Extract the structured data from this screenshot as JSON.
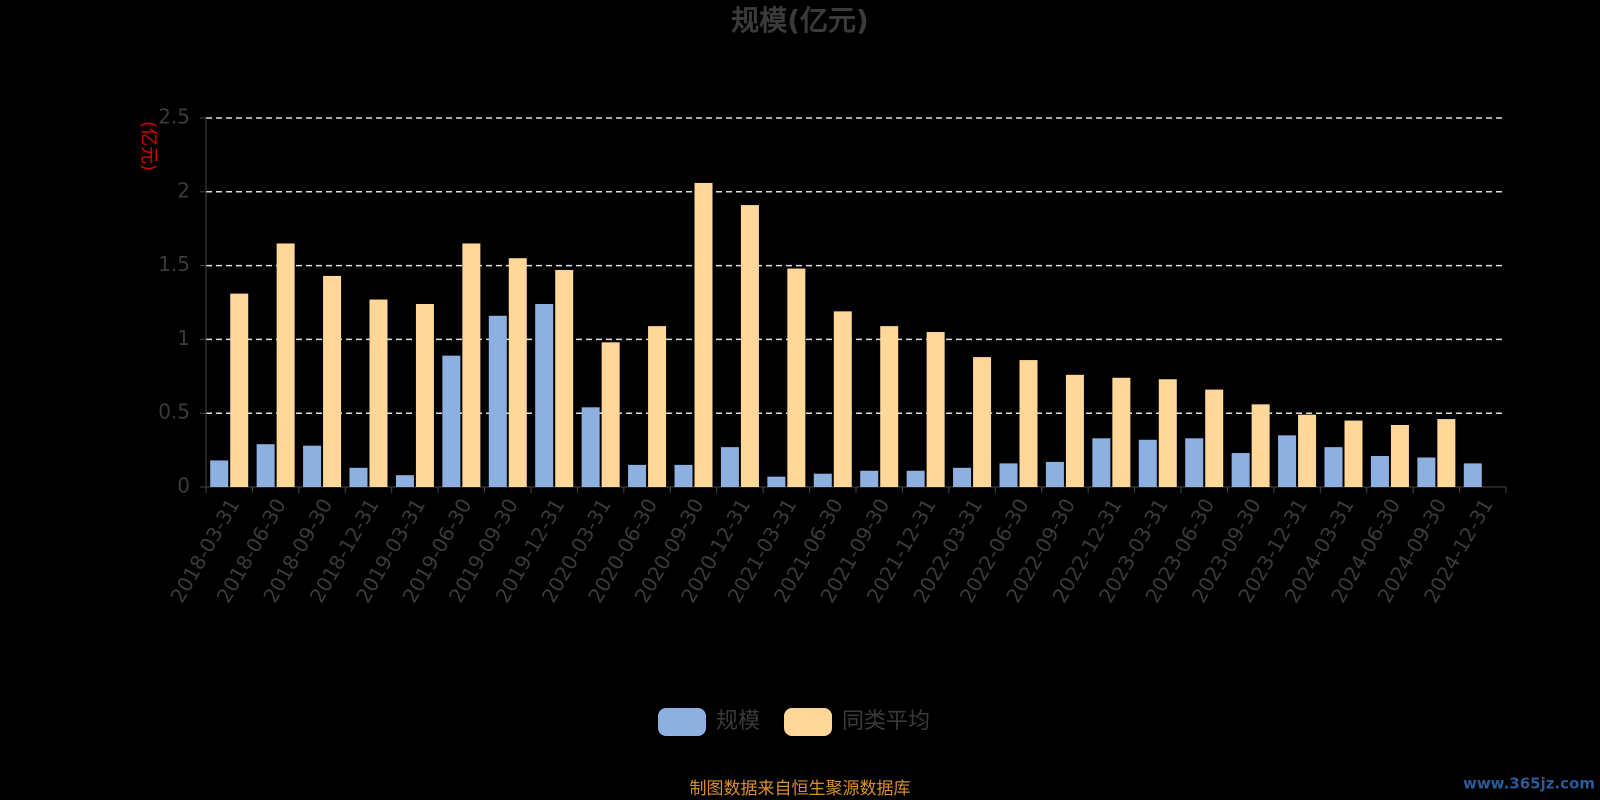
{
  "chart_data": {
    "type": "bar",
    "title": "规模(亿元)",
    "y_axis_label": "(亿元)",
    "categories": [
      "2018-03-31",
      "2018-06-30",
      "2018-09-30",
      "2018-12-31",
      "2019-03-31",
      "2019-06-30",
      "2019-09-30",
      "2019-12-31",
      "2020-03-31",
      "2020-06-30",
      "2020-09-30",
      "2020-12-31",
      "2021-03-31",
      "2021-06-30",
      "2021-09-30",
      "2021-12-31",
      "2022-03-31",
      "2022-06-30",
      "2022-09-30",
      "2022-12-31",
      "2023-03-31",
      "2023-06-30",
      "2023-09-30",
      "2023-12-31",
      "2024-03-31",
      "2024-06-30",
      "2024-09-30",
      "2024-12-31"
    ],
    "series": [
      {
        "name": "规模",
        "color": "#8eb0e0",
        "values": [
          0.18,
          0.29,
          0.28,
          0.13,
          0.08,
          0.89,
          1.16,
          1.24,
          0.54,
          0.15,
          0.15,
          0.27,
          0.07,
          0.09,
          0.11,
          0.11,
          0.13,
          0.16,
          0.17,
          0.33,
          0.32,
          0.33,
          0.23,
          0.35,
          0.27,
          0.21,
          0.2,
          0.16
        ]
      },
      {
        "name": "同类平均",
        "color": "#ffd899",
        "values": [
          1.31,
          1.65,
          1.43,
          1.27,
          1.24,
          1.65,
          1.55,
          1.47,
          0.98,
          1.09,
          2.06,
          1.91,
          1.48,
          1.19,
          1.09,
          1.05,
          0.88,
          0.86,
          0.76,
          0.74,
          0.73,
          0.66,
          0.56,
          0.49,
          0.45,
          0.42,
          0.46,
          null
        ]
      }
    ],
    "ylim": [
      0,
      2.5
    ],
    "yticks": [
      0,
      0.5,
      1,
      1.5,
      2,
      2.5
    ],
    "grid": true,
    "legend": "bottom",
    "source": "制图数据来自恒生聚源数据库",
    "watermark": "www.365jz.com"
  }
}
